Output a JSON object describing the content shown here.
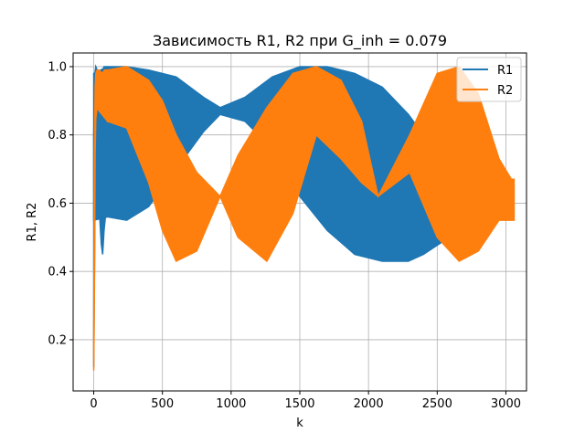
{
  "chart_data": {
    "type": "line",
    "title": "Зависимость R1, R2 при G_inh = 0.079",
    "xlabel": "k",
    "ylabel": "R1, R2",
    "xlim": [
      -150,
      3150
    ],
    "ylim": [
      0.05,
      1.04
    ],
    "xticks": [
      0,
      500,
      1000,
      1500,
      2000,
      2500,
      3000
    ],
    "xtick_labels": [
      "0",
      "500",
      "1000",
      "1500",
      "2000",
      "2500",
      "3000"
    ],
    "yticks": [
      0.2,
      0.4,
      0.6,
      0.8,
      1.0
    ],
    "ytick_labels": [
      "0.2",
      "0.4",
      "0.6",
      "0.8",
      "1.0"
    ],
    "grid": true,
    "legend_position": "top-right",
    "series": [
      {
        "name": "R1",
        "color": "#1f77b4",
        "render": "band",
        "x": [
          0,
          100,
          240,
          400,
          600,
          800,
          920,
          1100,
          1300,
          1500,
          1700,
          1900,
          2100,
          2290,
          2400,
          2550,
          2700,
          2850,
          3000,
          3040
        ],
        "lower": [
          0.55,
          0.56,
          0.55,
          0.59,
          0.7,
          0.81,
          0.86,
          0.84,
          0.76,
          0.62,
          0.52,
          0.45,
          0.43,
          0.43,
          0.45,
          0.49,
          0.53,
          0.58,
          0.62,
          0.63
        ],
        "upper": [
          0.98,
          1.0,
          1.0,
          0.99,
          0.97,
          0.91,
          0.88,
          0.91,
          0.97,
          1.0,
          1.0,
          0.98,
          0.94,
          0.86,
          0.8,
          0.74,
          0.69,
          0.65,
          0.63,
          0.63
        ],
        "transient": {
          "x": [
            0,
            8,
            15,
            25,
            35,
            45,
            55,
            65,
            75,
            85,
            100
          ],
          "lower": [
            0.12,
            0.55,
            0.67,
            0.65,
            0.6,
            0.55,
            0.48,
            0.45,
            0.52,
            0.56,
            0.56
          ],
          "upper": [
            0.8,
            0.98,
            1.0,
            0.99,
            0.98,
            0.97,
            0.98,
            0.99,
            1.0,
            1.0,
            1.0
          ]
        }
      },
      {
        "name": "R2",
        "color": "#ff7f0e",
        "render": "band",
        "x": [
          100,
          240,
          400,
          500,
          600,
          750,
          920,
          1050,
          1260,
          1450,
          1620,
          1800,
          1950,
          2070,
          2300,
          2500,
          2660,
          2800,
          2950,
          3040,
          3060
        ],
        "lower": [
          0.84,
          0.82,
          0.66,
          0.52,
          0.43,
          0.46,
          0.62,
          0.5,
          0.43,
          0.57,
          0.8,
          0.73,
          0.66,
          0.62,
          0.69,
          0.5,
          0.43,
          0.46,
          0.55,
          0.55,
          0.55
        ],
        "upper": [
          0.99,
          1.0,
          0.96,
          0.9,
          0.8,
          0.69,
          0.62,
          0.74,
          0.88,
          0.98,
          1.0,
          0.96,
          0.84,
          0.62,
          0.8,
          0.98,
          1.0,
          0.92,
          0.73,
          0.67,
          0.67
        ],
        "transient": {
          "x": [
            0,
            5,
            10,
            15,
            25,
            40,
            60,
            80,
            100
          ],
          "lower": [
            0.11,
            0.35,
            0.74,
            0.85,
            0.88,
            0.87,
            0.86,
            0.85,
            0.84
          ],
          "upper": [
            0.22,
            0.76,
            0.94,
            0.98,
            0.99,
            0.99,
            0.98,
            0.99,
            0.99
          ]
        }
      }
    ]
  }
}
